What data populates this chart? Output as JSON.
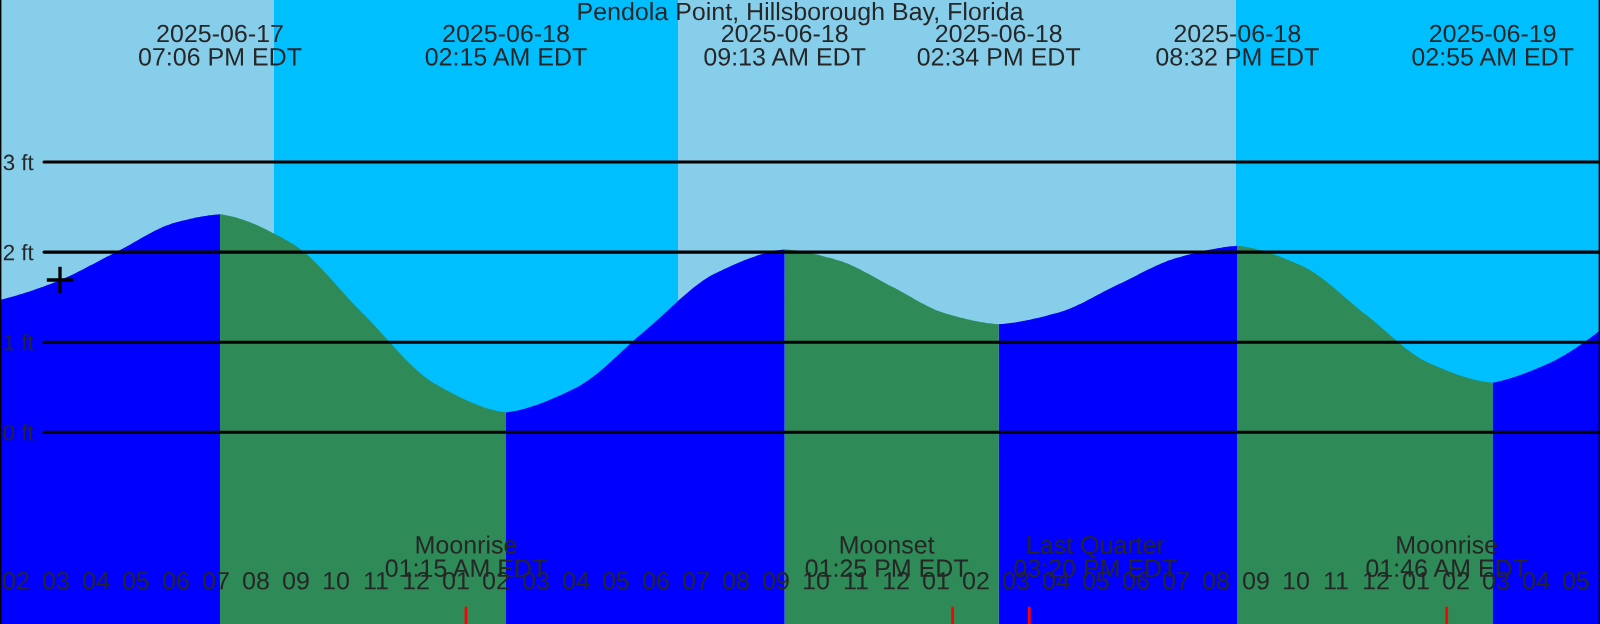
{
  "chart_data": {
    "type": "area",
    "title": "Pendola Point, Hillsborough Bay, Florida",
    "xlim": [
      "2025-06-17T13:36",
      "2025-06-19T05:36"
    ],
    "ylim": [
      -2.13,
      4.8
    ],
    "yticks": [
      {
        "value": 0,
        "label": "0 ft"
      },
      {
        "value": 1,
        "label": "1 ft"
      },
      {
        "value": 2,
        "label": "2 ft"
      },
      {
        "value": 3,
        "label": "3 ft"
      }
    ],
    "xticks": [
      {
        "value": "2025-06-17T14:00",
        "label": "02"
      },
      {
        "value": "2025-06-17T15:00",
        "label": "03"
      },
      {
        "value": "2025-06-17T16:00",
        "label": "04"
      },
      {
        "value": "2025-06-17T17:00",
        "label": "05"
      },
      {
        "value": "2025-06-17T18:00",
        "label": "06"
      },
      {
        "value": "2025-06-17T19:00",
        "label": "07"
      },
      {
        "value": "2025-06-17T20:00",
        "label": "08"
      },
      {
        "value": "2025-06-17T21:00",
        "label": "09"
      },
      {
        "value": "2025-06-17T22:00",
        "label": "10"
      },
      {
        "value": "2025-06-17T23:00",
        "label": "11"
      },
      {
        "value": "2025-06-18T00:00",
        "label": "12"
      },
      {
        "value": "2025-06-18T01:00",
        "label": "01"
      },
      {
        "value": "2025-06-18T02:00",
        "label": "02"
      },
      {
        "value": "2025-06-18T03:00",
        "label": "03"
      },
      {
        "value": "2025-06-18T04:00",
        "label": "04"
      },
      {
        "value": "2025-06-18T05:00",
        "label": "05"
      },
      {
        "value": "2025-06-18T06:00",
        "label": "06"
      },
      {
        "value": "2025-06-18T07:00",
        "label": "07"
      },
      {
        "value": "2025-06-18T08:00",
        "label": "08"
      },
      {
        "value": "2025-06-18T09:00",
        "label": "09"
      },
      {
        "value": "2025-06-18T10:00",
        "label": "10"
      },
      {
        "value": "2025-06-18T11:00",
        "label": "11"
      },
      {
        "value": "2025-06-18T12:00",
        "label": "12"
      },
      {
        "value": "2025-06-18T13:00",
        "label": "01"
      },
      {
        "value": "2025-06-18T14:00",
        "label": "02"
      },
      {
        "value": "2025-06-18T15:00",
        "label": "03"
      },
      {
        "value": "2025-06-18T16:00",
        "label": "04"
      },
      {
        "value": "2025-06-18T17:00",
        "label": "05"
      },
      {
        "value": "2025-06-18T18:00",
        "label": "06"
      },
      {
        "value": "2025-06-18T19:00",
        "label": "07"
      },
      {
        "value": "2025-06-18T20:00",
        "label": "08"
      },
      {
        "value": "2025-06-18T21:00",
        "label": "09"
      },
      {
        "value": "2025-06-18T22:00",
        "label": "10"
      },
      {
        "value": "2025-06-18T23:00",
        "label": "11"
      },
      {
        "value": "2025-06-19T00:00",
        "label": "12"
      },
      {
        "value": "2025-06-19T01:00",
        "label": "01"
      },
      {
        "value": "2025-06-19T02:00",
        "label": "02"
      },
      {
        "value": "2025-06-19T03:00",
        "label": "03"
      },
      {
        "value": "2025-06-19T04:00",
        "label": "04"
      },
      {
        "value": "2025-06-19T05:00",
        "label": "05"
      }
    ],
    "grid": "y",
    "legend": false,
    "bands": [
      {
        "axis": "x",
        "from": "2025-06-17T13:36",
        "to": "2025-06-17T20:27",
        "color": "#87ceeb"
      },
      {
        "axis": "x",
        "from": "2025-06-17T20:27",
        "to": "2025-06-18T06:33",
        "color": "#00bfff"
      },
      {
        "axis": "x",
        "from": "2025-06-18T06:33",
        "to": "2025-06-18T20:30",
        "color": "#87ceeb"
      },
      {
        "axis": "x",
        "from": "2025-06-18T20:30",
        "to": "2025-06-19T05:36",
        "color": "#00bfff"
      }
    ],
    "series": [
      {
        "color": "#0000ff",
        "x": [
          "2025-06-17T13:36",
          "2025-06-17T15:00",
          "2025-06-17T16:30",
          "2025-06-17T18:00",
          "2025-06-17T19:06",
          "2025-06-17T22:40",
          "2025-06-18T02:15",
          "2025-06-18T03:59",
          "2025-06-18T05:44",
          "2025-06-18T07:28",
          "2025-06-18T09:13",
          "2025-06-18T11:53",
          "2025-06-18T14:34",
          "2025-06-18T16:04",
          "2025-06-18T17:33",
          "2025-06-18T19:03",
          "2025-06-18T20:32",
          "2025-06-18T23:44",
          "2025-06-19T02:55",
          "2025-06-19T04:15",
          "2025-06-19T05:36"
        ],
        "values": [
          1.47,
          1.67,
          2.0,
          2.33,
          2.42,
          null,
          0.22,
          0.49,
          1.13,
          1.76,
          2.03,
          null,
          1.2,
          1.33,
          1.64,
          1.94,
          2.07,
          null,
          0.55,
          0.75,
          1.13
        ]
      },
      {
        "color": "#2e8b57",
        "x": [
          "2025-06-17T19:06",
          "2025-06-17T20:53",
          "2025-06-17T22:40",
          "2025-06-18T00:28",
          "2025-06-18T02:15",
          "2025-06-18T05:44",
          "2025-06-18T09:13",
          "2025-06-18T10:33",
          "2025-06-18T11:53",
          "2025-06-18T13:14",
          "2025-06-18T14:34",
          "2025-06-18T17:33",
          "2025-06-18T20:32",
          "2025-06-18T22:08",
          "2025-06-18T23:44",
          "2025-06-19T01:19",
          "2025-06-19T02:55"
        ],
        "values": [
          2.42,
          2.1,
          1.32,
          0.54,
          0.22,
          null,
          2.03,
          1.91,
          1.62,
          1.32,
          1.2,
          null,
          2.07,
          1.85,
          1.31,
          0.77,
          0.55
        ]
      },
      {
        "type": "scatter",
        "color": "#000000",
        "marker": "cross",
        "x": [
          "2025-06-17T15:06"
        ],
        "values": [
          1.69
        ]
      }
    ],
    "annotations": [
      "2025-06-17\n07:06 PM EDT",
      "2025-06-18\n02:15 AM EDT",
      "2025-06-18\n09:13 AM EDT",
      "2025-06-18\n02:34 PM EDT",
      "2025-06-18\n08:32 PM EDT",
      "2025-06-19\n02:55 AM EDT"
    ],
    "ref_lines": [
      {
        "axis": "x",
        "value": "2025-06-18T01:15",
        "label": "Moonrise\n01:15 AM EDT",
        "color": "#ff0000"
      },
      {
        "axis": "x",
        "value": "2025-06-18T13:25",
        "label": "Moonset\n01:25 PM EDT",
        "color": "#ff0000"
      },
      {
        "axis": "x",
        "value": "2025-06-18T15:20",
        "label": "Last Quarter\n03:20 PM EDT",
        "color": "#ff0000"
      },
      {
        "axis": "x",
        "value": "2025-06-19T01:46",
        "label": "Moonrise\n01:46 AM EDT",
        "color": "#ff0000"
      }
    ]
  }
}
